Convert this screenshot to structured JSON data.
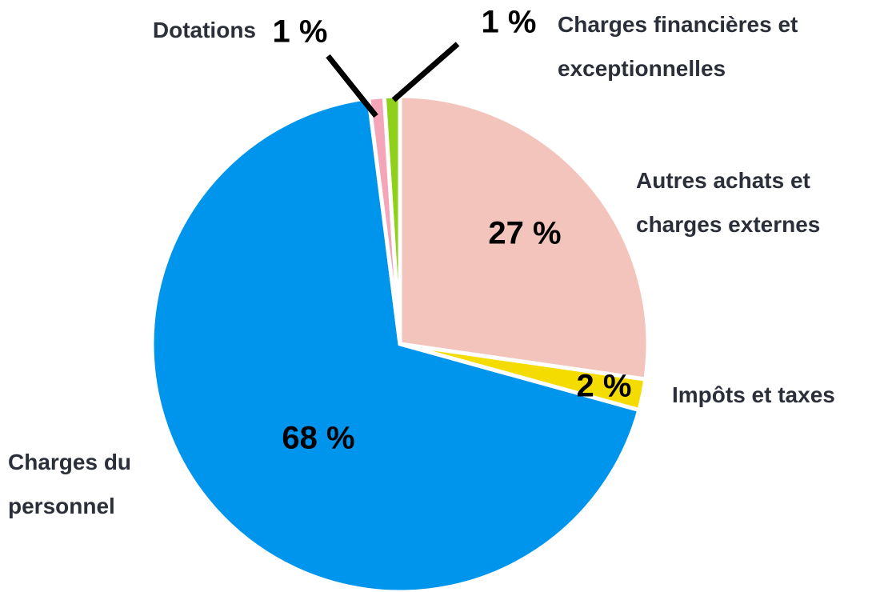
{
  "chart_data": {
    "type": "pie",
    "categories": [
      "Autres achats et charges externes",
      "Impôts et taxes",
      "Charges du personnel",
      "Dotations",
      "Charges financières et exceptionnelles"
    ],
    "values": [
      27,
      2,
      68,
      1,
      1
    ],
    "value_labels": [
      "27 %",
      "2 %",
      "68 %",
      "1 %",
      "1 %"
    ],
    "colors": [
      "#f2c4bc",
      "#f5dc00",
      "#0095ed",
      "#f4a5b8",
      "#8fd11a"
    ]
  }
}
